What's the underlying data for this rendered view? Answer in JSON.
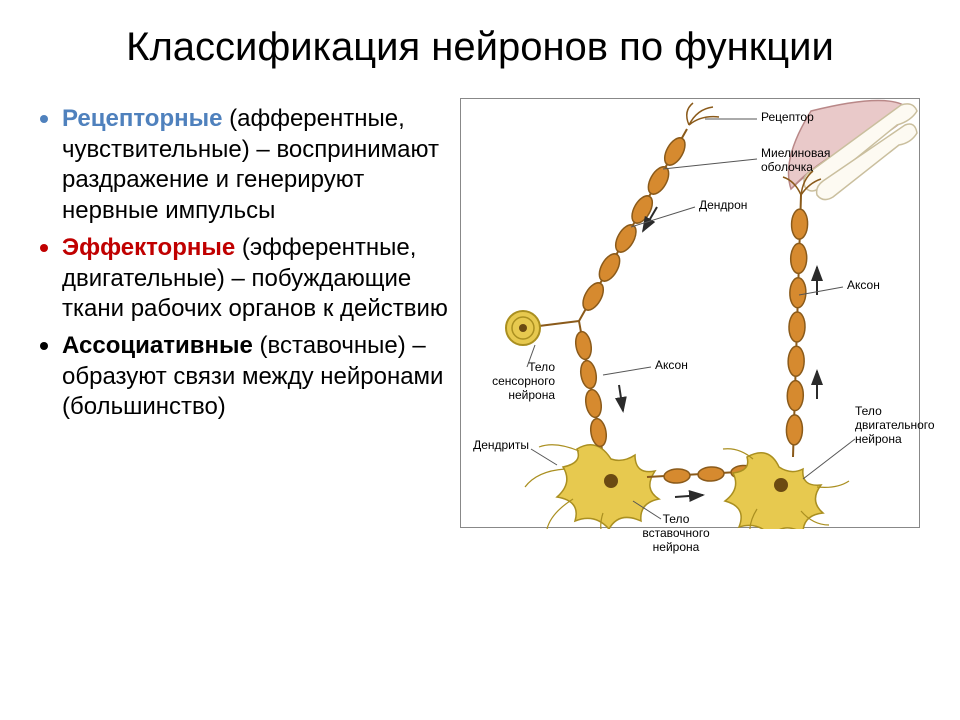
{
  "title": "Классификация нейронов по функции",
  "bullets": [
    {
      "dot_color": "#4f81bd",
      "term": "Рецепторные",
      "term_color": "#4f81bd",
      "desc": " (афферентные, чувствительные) – воспринимают раздражение и генерируют нервные импульсы"
    },
    {
      "dot_color": "#c00000",
      "term": "Эффекторные",
      "term_color": "#c00000",
      "desc": " (эфферентные, двигательные) –  побуждающие ткани рабочих органов к действию"
    },
    {
      "dot_color": "#000000",
      "term": "Ассоциативные",
      "term_color": "#000000",
      "desc": " (вставочные) – образуют связи между нейронами (большинство)"
    }
  ],
  "diagram": {
    "background": "#ffffff",
    "colors": {
      "myelin_fill": "#d68a2f",
      "myelin_stroke": "#8a5a1a",
      "cell_fill": "#e7c94f",
      "cell_stroke": "#aa8f20",
      "nucleus": "#6b4a12",
      "muscle_fill": "#e9c9c9",
      "muscle_stroke": "#b98888",
      "bone_fill": "#fdfaf2",
      "bone_stroke": "#cabf9e",
      "leader": "#555555",
      "arrow": "#2b2b2b"
    },
    "labels": {
      "receptor": "Рецептор",
      "myelin": "Миелиновая\nоболочка",
      "dendron": "Дендрон",
      "axon": "Аксон",
      "sensory_body": "Тело\nсенсорного\nнейрона",
      "dendrites": "Дендриты",
      "inter_body": "Тело\nвставочного\nнейрона",
      "motor_body": "Тело\nдвигательного\nнейрона"
    }
  }
}
